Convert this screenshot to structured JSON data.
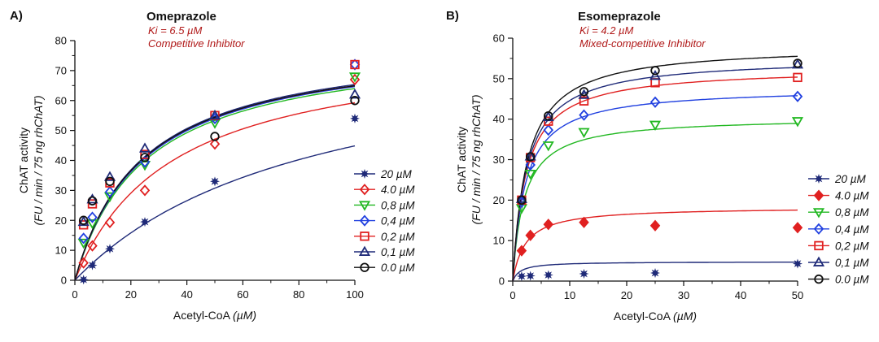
{
  "chart_data": [
    {
      "type": "scatter",
      "panel_label": "A)",
      "title": "Omeprazole",
      "subtitle_lines": [
        "Ki = 6.5 µM",
        "Competitive Inhibitor"
      ],
      "xlabel_plain": "Acetyl-CoA ",
      "xlabel_italic": "(µM)",
      "ylabel_line1": "ChAT activity",
      "ylabel_line2": "(FU / min / 75 ng rhChAT)",
      "xlim": [
        0,
        100
      ],
      "ylim": [
        0,
        80
      ],
      "xticks": [
        0,
        20,
        40,
        60,
        80,
        100
      ],
      "yticks": [
        0,
        10,
        20,
        30,
        40,
        50,
        60,
        70,
        80
      ],
      "grid": false,
      "legend_position": "right",
      "x": [
        3.1,
        6.25,
        12.5,
        25,
        50,
        100
      ],
      "series": [
        {
          "name": "20 µM",
          "marker": "star",
          "color": "#1f2a78",
          "values": [
            0.2,
            5,
            10.5,
            19.5,
            33,
            54
          ],
          "fit": {
            "vmax": 83,
            "km": 85
          }
        },
        {
          "name": "4.0 µM",
          "marker": "diamond",
          "color": "#e02020",
          "values": [
            5.8,
            11.5,
            19.3,
            30,
            45.5,
            67
          ],
          "fit": {
            "vmax": 80,
            "km": 35
          }
        },
        {
          "name": "0,8 µM",
          "marker": "triangle-down",
          "color": "#22b822",
          "values": [
            12.5,
            19,
            28,
            38.5,
            52.5,
            68
          ],
          "fit": {
            "vmax": 80,
            "km": 25
          }
        },
        {
          "name": "0,4 µM",
          "marker": "diamond",
          "color": "#2040e0",
          "values": [
            14,
            21,
            29.5,
            39.5,
            54,
            72
          ],
          "fit": {
            "vmax": 80.5,
            "km": 24.5
          }
        },
        {
          "name": "0,2 µM",
          "marker": "square",
          "color": "#e02020",
          "values": [
            18.5,
            25.5,
            32.5,
            42,
            55,
            72
          ],
          "fit": {
            "vmax": 80.5,
            "km": 24
          }
        },
        {
          "name": "0,1 µM",
          "marker": "triangle-up",
          "color": "#1f2a78",
          "values": [
            19.5,
            27,
            34.5,
            44,
            55,
            62
          ],
          "fit": {
            "vmax": 81,
            "km": 24
          }
        },
        {
          "name": "0.0 µM",
          "marker": "circle",
          "color": "#111111",
          "values": [
            20,
            26.5,
            33,
            41,
            48,
            60
          ],
          "fit": {
            "vmax": 80.5,
            "km": 24
          }
        }
      ]
    },
    {
      "type": "scatter",
      "panel_label": "B)",
      "title": "Esomeprazole",
      "subtitle_lines": [
        "Ki = 4.2 µM",
        "Mixed-competitive Inhibitor"
      ],
      "xlabel_plain": "Acetyl-CoA ",
      "xlabel_italic": "(µM)",
      "ylabel_line1": "ChAT activity",
      "ylabel_line2": "(FU / min / 75 ng rhChAT)",
      "xlim": [
        0,
        50
      ],
      "ylim": [
        0,
        60
      ],
      "xticks": [
        0,
        10,
        20,
        30,
        40,
        50
      ],
      "yticks": [
        0,
        10,
        20,
        30,
        40,
        50,
        60
      ],
      "grid": false,
      "legend_position": "right",
      "x": [
        1.56,
        3.1,
        6.25,
        12.5,
        25,
        50
      ],
      "series": [
        {
          "name": "20 µM",
          "marker": "star",
          "color": "#1f2a78",
          "values": [
            1.2,
            1.3,
            1.5,
            1.8,
            2,
            4.3
          ],
          "fit": {
            "vmax": 4.8,
            "km": 1.3
          }
        },
        {
          "name": "4.0 µM",
          "marker": "diamond-filled",
          "color": "#e02020",
          "values": [
            7.5,
            11.3,
            14,
            14.5,
            13.7,
            13.2
          ],
          "fit": {
            "vmax": 18.3,
            "km": 2.2
          }
        },
        {
          "name": "0,8 µM",
          "marker": "triangle-down",
          "color": "#22b822",
          "values": [
            18,
            26.5,
            33.5,
            36.8,
            38.6,
            39.5
          ],
          "fit": {
            "vmax": 40.5,
            "km": 2.0
          }
        },
        {
          "name": "0,4 µM",
          "marker": "diamond",
          "color": "#2040e0",
          "values": [
            19.5,
            28.7,
            37.3,
            41,
            44.2,
            45.6
          ],
          "fit": {
            "vmax": 47.8,
            "km": 2.2
          }
        },
        {
          "name": "0,2 µM",
          "marker": "square",
          "color": "#e02020",
          "values": [
            20,
            30.5,
            39.5,
            44.5,
            49,
            50.3
          ],
          "fit": {
            "vmax": 52.7,
            "km": 2.3
          }
        },
        {
          "name": "0,1 µM",
          "marker": "triangle-up",
          "color": "#1f2a78",
          "values": [
            20.3,
            30.8,
            40.5,
            46,
            50.7,
            53.5
          ],
          "fit": {
            "vmax": 55.3,
            "km": 2.4
          }
        },
        {
          "name": "0.0 µM",
          "marker": "circle",
          "color": "#111111",
          "values": [
            20,
            30.7,
            40.8,
            46.8,
            52,
            53.8
          ],
          "fit": {
            "vmax": 58.3,
            "km": 2.5
          }
        }
      ]
    }
  ]
}
